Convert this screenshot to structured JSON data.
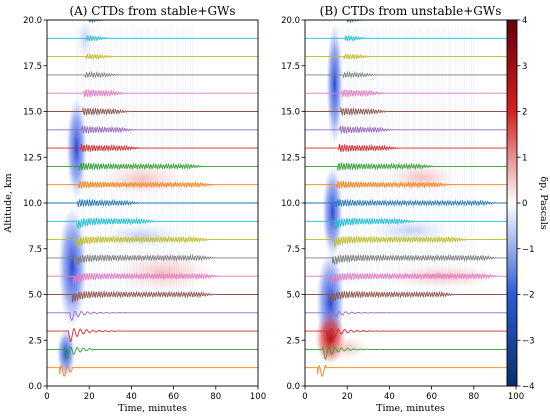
{
  "chart_data": [
    {
      "type": "line",
      "panel": "A",
      "title": "(A) CTDs from stable+GWs",
      "xlabel": "Time, minutes",
      "ylabel": "Altitude, km",
      "xlim": [
        0,
        100
      ],
      "ylim": [
        0,
        20
      ],
      "xticks": [
        "0",
        "20",
        "40",
        "60",
        "80",
        "100"
      ],
      "yticks": [
        "0.0",
        "2.5",
        "5.0",
        "7.5",
        "10.0",
        "12.5",
        "15.0",
        "17.5",
        "20.0"
      ],
      "altitudes": [
        1,
        2,
        3,
        4,
        5,
        6,
        7,
        8,
        9,
        10,
        11,
        12,
        13,
        14,
        15,
        16,
        17,
        18,
        19,
        20
      ],
      "onset_minutes": [
        6,
        8,
        10,
        11,
        12,
        12.5,
        13,
        13.5,
        14,
        14.5,
        15,
        15.5,
        16,
        16.5,
        17,
        17.5,
        18,
        18.5,
        19,
        19.5
      ],
      "end_minutes": [
        12,
        22,
        35,
        40,
        80,
        82,
        80,
        78,
        52,
        45,
        80,
        75,
        45,
        42,
        40,
        38,
        35,
        32,
        30,
        28
      ]
    },
    {
      "type": "line",
      "panel": "B",
      "title": "(B) CTDs from unstable+GWs",
      "xlabel": "Time, minutes",
      "ylabel": "",
      "xlim": [
        0,
        100
      ],
      "ylim": [
        0,
        20
      ],
      "xticks": [
        "0",
        "20",
        "40",
        "60",
        "80",
        "100"
      ],
      "yticks": [
        "0.0",
        "2.5",
        "5.0",
        "7.5",
        "10.0",
        "12.5",
        "15.0",
        "17.5",
        "20.0"
      ],
      "altitudes": [
        1,
        2,
        3,
        4,
        5,
        6,
        7,
        8,
        9,
        10,
        11,
        12,
        13,
        14,
        15,
        16,
        17,
        18,
        19,
        20
      ],
      "onset_minutes": [
        6,
        8,
        10,
        11,
        12,
        12.5,
        13,
        13.5,
        14,
        14.5,
        15,
        15.5,
        16,
        16.5,
        17,
        17.5,
        18,
        18.5,
        19,
        19.5
      ],
      "end_minutes": [
        10,
        38,
        42,
        50,
        72,
        92,
        92,
        78,
        52,
        92,
        70,
        62,
        45,
        42,
        40,
        38,
        35,
        32,
        30,
        28
      ]
    }
  ],
  "colorbar": {
    "label": "δp, Pascals",
    "range": [
      -4,
      4
    ],
    "ticks": [
      "4",
      "3",
      "2",
      "1",
      "0",
      "−1",
      "−2",
      "−3",
      "−4"
    ],
    "colors": [
      "#08306b",
      "#2b5bd6",
      "#ffffff",
      "#d42020",
      "#67000d"
    ]
  },
  "trace_colors": [
    "#ff7f0e",
    "#2ca02c",
    "#d62728",
    "#9467bd",
    "#8c564b",
    "#e377c2",
    "#7f7f7f",
    "#bcbd22",
    "#17becf",
    "#1f77b4"
  ]
}
